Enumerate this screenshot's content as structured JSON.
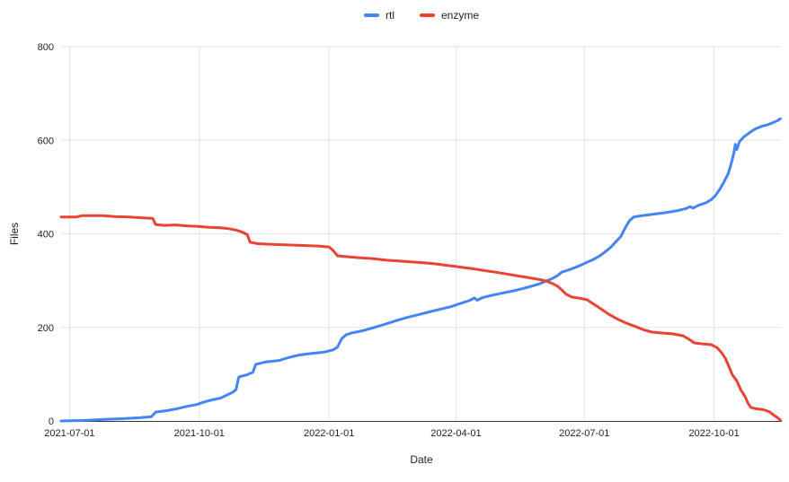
{
  "legend": {
    "items": [
      {
        "label": "rtl",
        "color": "#4285F4"
      },
      {
        "label": "enzyme",
        "color": "#EA4335"
      }
    ]
  },
  "colors": {
    "grid": "#e3e3e3",
    "axis": "#333333",
    "text": "#1f1f1f",
    "background": "#ffffff",
    "rtl_series": "#4285F4",
    "enzyme_series": "#EA4335"
  },
  "chart_data": {
    "type": "line",
    "title": "",
    "xlabel": "Date",
    "ylabel": "Files",
    "grid": true,
    "legend_position": "top",
    "ylim": [
      0,
      800
    ],
    "y_ticks": [
      0,
      200,
      400,
      600,
      800
    ],
    "x_ticks": [
      "2021-07-01",
      "2021-10-01",
      "2022-01-01",
      "2022-04-01",
      "2022-07-01",
      "2022-10-01"
    ],
    "xlim": [
      "2021-06-25",
      "2022-11-18"
    ],
    "series": [
      {
        "name": "rtl",
        "color": "#4285F4",
        "points": [
          [
            "2021-06-25",
            0
          ],
          [
            "2021-07-10",
            1
          ],
          [
            "2021-07-24",
            3
          ],
          [
            "2021-08-08",
            5
          ],
          [
            "2021-08-20",
            7
          ],
          [
            "2021-08-28",
            9
          ],
          [
            "2021-08-31",
            19
          ],
          [
            "2021-09-08",
            22
          ],
          [
            "2021-09-15",
            26
          ],
          [
            "2021-09-22",
            31
          ],
          [
            "2021-09-29",
            35
          ],
          [
            "2021-10-04",
            40
          ],
          [
            "2021-10-10",
            45
          ],
          [
            "2021-10-16",
            49
          ],
          [
            "2021-10-21",
            56
          ],
          [
            "2021-10-25",
            62
          ],
          [
            "2021-10-27",
            67
          ],
          [
            "2021-10-29",
            94
          ],
          [
            "2021-11-04",
            99
          ],
          [
            "2021-11-08",
            104
          ],
          [
            "2021-11-10",
            121
          ],
          [
            "2021-11-17",
            126
          ],
          [
            "2021-11-26",
            129
          ],
          [
            "2021-12-04",
            136
          ],
          [
            "2021-12-11",
            141
          ],
          [
            "2021-12-19",
            144
          ],
          [
            "2021-12-28",
            147
          ],
          [
            "2022-01-04",
            152
          ],
          [
            "2022-01-07",
            158
          ],
          [
            "2022-01-10",
            176
          ],
          [
            "2022-01-13",
            184
          ],
          [
            "2022-01-17",
            188
          ],
          [
            "2022-01-25",
            193
          ],
          [
            "2022-02-02",
            200
          ],
          [
            "2022-02-09",
            206
          ],
          [
            "2022-02-17",
            214
          ],
          [
            "2022-02-25",
            221
          ],
          [
            "2022-03-05",
            227
          ],
          [
            "2022-03-13",
            233
          ],
          [
            "2022-03-21",
            239
          ],
          [
            "2022-03-28",
            244
          ],
          [
            "2022-04-04",
            251
          ],
          [
            "2022-04-11",
            258
          ],
          [
            "2022-04-14",
            263
          ],
          [
            "2022-04-16",
            258
          ],
          [
            "2022-04-20",
            264
          ],
          [
            "2022-04-27",
            269
          ],
          [
            "2022-05-05",
            274
          ],
          [
            "2022-05-13",
            279
          ],
          [
            "2022-05-21",
            285
          ],
          [
            "2022-05-29",
            292
          ],
          [
            "2022-06-03",
            298
          ],
          [
            "2022-06-08",
            304
          ],
          [
            "2022-06-12",
            311
          ],
          [
            "2022-06-15",
            318
          ],
          [
            "2022-06-21",
            324
          ],
          [
            "2022-06-27",
            331
          ],
          [
            "2022-07-02",
            338
          ],
          [
            "2022-07-08",
            346
          ],
          [
            "2022-07-12",
            353
          ],
          [
            "2022-07-16",
            362
          ],
          [
            "2022-07-20",
            372
          ],
          [
            "2022-07-23",
            382
          ],
          [
            "2022-07-27",
            395
          ],
          [
            "2022-07-30",
            413
          ],
          [
            "2022-08-02",
            428
          ],
          [
            "2022-08-05",
            436
          ],
          [
            "2022-08-11",
            439
          ],
          [
            "2022-08-19",
            442
          ],
          [
            "2022-08-27",
            445
          ],
          [
            "2022-09-04",
            449
          ],
          [
            "2022-09-11",
            454
          ],
          [
            "2022-09-14",
            458
          ],
          [
            "2022-09-16",
            455
          ],
          [
            "2022-09-20",
            461
          ],
          [
            "2022-09-25",
            466
          ],
          [
            "2022-09-29",
            473
          ],
          [
            "2022-10-02",
            482
          ],
          [
            "2022-10-05",
            495
          ],
          [
            "2022-10-08",
            511
          ],
          [
            "2022-10-11",
            529
          ],
          [
            "2022-10-13",
            549
          ],
          [
            "2022-10-15",
            572
          ],
          [
            "2022-10-16",
            591
          ],
          [
            "2022-10-17",
            580
          ],
          [
            "2022-10-19",
            597
          ],
          [
            "2022-10-22",
            607
          ],
          [
            "2022-10-26",
            616
          ],
          [
            "2022-10-30",
            624
          ],
          [
            "2022-11-03",
            629
          ],
          [
            "2022-11-08",
            633
          ],
          [
            "2022-11-12",
            638
          ],
          [
            "2022-11-15",
            642
          ],
          [
            "2022-11-17",
            646
          ]
        ]
      },
      {
        "name": "enzyme",
        "color": "#EA4335",
        "points": [
          [
            "2021-06-25",
            436
          ],
          [
            "2021-07-06",
            436
          ],
          [
            "2021-07-10",
            439
          ],
          [
            "2021-07-24",
            439
          ],
          [
            "2021-08-02",
            437
          ],
          [
            "2021-08-12",
            436
          ],
          [
            "2021-08-22",
            434
          ],
          [
            "2021-08-29",
            433
          ],
          [
            "2021-08-31",
            420
          ],
          [
            "2021-09-06",
            418
          ],
          [
            "2021-09-14",
            419
          ],
          [
            "2021-09-22",
            417
          ],
          [
            "2021-09-30",
            416
          ],
          [
            "2021-10-08",
            414
          ],
          [
            "2021-10-16",
            413
          ],
          [
            "2021-10-22",
            411
          ],
          [
            "2021-10-27",
            408
          ],
          [
            "2021-11-01",
            403
          ],
          [
            "2021-11-04",
            398
          ],
          [
            "2021-11-06",
            382
          ],
          [
            "2021-11-11",
            379
          ],
          [
            "2021-11-18",
            378
          ],
          [
            "2021-11-26",
            377
          ],
          [
            "2021-12-05",
            376
          ],
          [
            "2021-12-14",
            375
          ],
          [
            "2021-12-24",
            374
          ],
          [
            "2022-01-01",
            372
          ],
          [
            "2022-01-04",
            364
          ],
          [
            "2022-01-07",
            353
          ],
          [
            "2022-01-14",
            351
          ],
          [
            "2022-01-22",
            349
          ],
          [
            "2022-02-01",
            347
          ],
          [
            "2022-02-10",
            344
          ],
          [
            "2022-02-19",
            342
          ],
          [
            "2022-02-28",
            340
          ],
          [
            "2022-03-09",
            338
          ],
          [
            "2022-03-17",
            336
          ],
          [
            "2022-03-24",
            333
          ],
          [
            "2022-03-30",
            331
          ],
          [
            "2022-04-06",
            328
          ],
          [
            "2022-04-14",
            325
          ],
          [
            "2022-04-22",
            321
          ],
          [
            "2022-04-29",
            318
          ],
          [
            "2022-05-07",
            314
          ],
          [
            "2022-05-15",
            310
          ],
          [
            "2022-05-23",
            306
          ],
          [
            "2022-05-31",
            302
          ],
          [
            "2022-06-05",
            298
          ],
          [
            "2022-06-09",
            293
          ],
          [
            "2022-06-12",
            288
          ],
          [
            "2022-06-15",
            280
          ],
          [
            "2022-06-18",
            271
          ],
          [
            "2022-06-22",
            265
          ],
          [
            "2022-06-28",
            262
          ],
          [
            "2022-07-03",
            259
          ],
          [
            "2022-07-07",
            251
          ],
          [
            "2022-07-11",
            243
          ],
          [
            "2022-07-15",
            235
          ],
          [
            "2022-07-19",
            227
          ],
          [
            "2022-07-25",
            217
          ],
          [
            "2022-07-31",
            209
          ],
          [
            "2022-08-06",
            202
          ],
          [
            "2022-08-12",
            195
          ],
          [
            "2022-08-18",
            190
          ],
          [
            "2022-08-25",
            188
          ],
          [
            "2022-09-02",
            186
          ],
          [
            "2022-09-09",
            182
          ],
          [
            "2022-09-13",
            175
          ],
          [
            "2022-09-17",
            167
          ],
          [
            "2022-09-22",
            165
          ],
          [
            "2022-09-29",
            163
          ],
          [
            "2022-10-03",
            157
          ],
          [
            "2022-10-06",
            147
          ],
          [
            "2022-10-09",
            134
          ],
          [
            "2022-10-12",
            113
          ],
          [
            "2022-10-14",
            98
          ],
          [
            "2022-10-17",
            86
          ],
          [
            "2022-10-20",
            66
          ],
          [
            "2022-10-23",
            52
          ],
          [
            "2022-10-25",
            38
          ],
          [
            "2022-10-27",
            29
          ],
          [
            "2022-10-31",
            26
          ],
          [
            "2022-11-05",
            24
          ],
          [
            "2022-11-09",
            20
          ],
          [
            "2022-11-12",
            13
          ],
          [
            "2022-11-15",
            7
          ],
          [
            "2022-11-17",
            2
          ]
        ]
      }
    ]
  }
}
